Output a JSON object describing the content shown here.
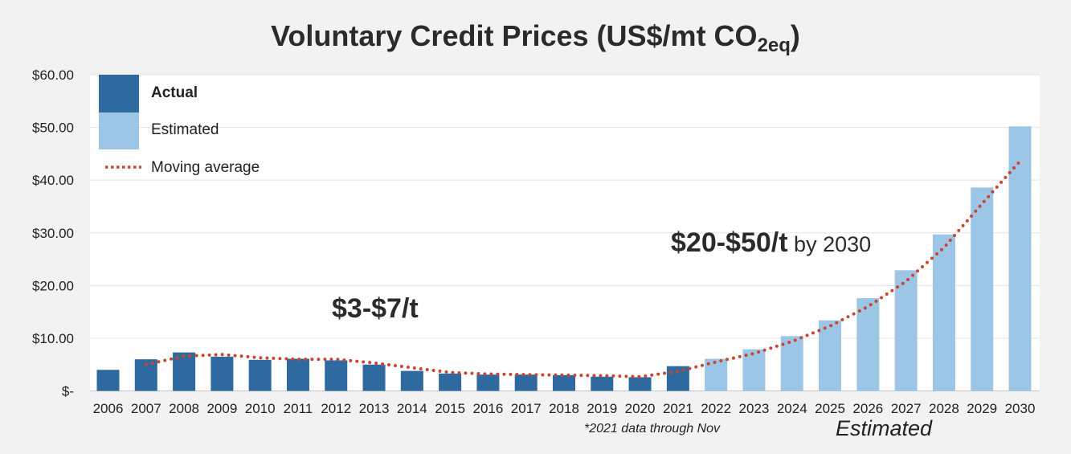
{
  "chart_data": {
    "type": "bar",
    "title_main": "Voluntary Credit Prices (US$/mt CO",
    "title_sub": "2eq",
    "title_end": ")",
    "categories": [
      "2006",
      "2007",
      "2008",
      "2009",
      "2010",
      "2011",
      "2012",
      "2013",
      "2014",
      "2015",
      "2016",
      "2017",
      "2018",
      "2019",
      "2020",
      "2021",
      "2022",
      "2023",
      "2024",
      "2025",
      "2026",
      "2027",
      "2028",
      "2029",
      "2030"
    ],
    "series": [
      {
        "name": "Actual",
        "color": "#2e6aa0",
        "values": [
          4.0,
          6.0,
          7.3,
          6.5,
          5.9,
          6.1,
          5.8,
          5.0,
          3.8,
          3.3,
          3.1,
          3.1,
          3.0,
          2.7,
          2.6,
          4.7,
          null,
          null,
          null,
          null,
          null,
          null,
          null,
          null,
          null
        ]
      },
      {
        "name": "Estimated",
        "color": "#9dc6e6",
        "values": [
          null,
          null,
          null,
          null,
          null,
          null,
          null,
          null,
          null,
          null,
          null,
          null,
          null,
          null,
          null,
          null,
          6.1,
          7.9,
          10.4,
          13.4,
          17.6,
          22.9,
          29.7,
          38.6,
          50.2
        ]
      }
    ],
    "moving_average": {
      "name": "Moving average",
      "color": "#c8452f",
      "x": [
        "2007",
        "2008",
        "2009",
        "2010",
        "2011",
        "2012",
        "2013",
        "2014",
        "2015",
        "2016",
        "2017",
        "2018",
        "2019",
        "2020",
        "2021",
        "2022",
        "2023",
        "2024",
        "2025",
        "2026",
        "2027",
        "2028",
        "2029",
        "2030"
      ],
      "values": [
        5.0,
        6.6,
        6.9,
        6.3,
        6.0,
        6.0,
        5.3,
        4.4,
        3.5,
        3.2,
        3.1,
        3.0,
        2.9,
        2.7,
        3.7,
        5.5,
        7.1,
        9.4,
        12.3,
        16.0,
        20.8,
        27.2,
        35.5,
        43.6
      ]
    },
    "yticks": [
      0,
      10,
      20,
      30,
      40,
      50,
      60
    ],
    "ytick_labels": [
      "$-",
      "$10.00",
      "$20.00",
      "$30.00",
      "$40.00",
      "$50.00",
      "$60.00"
    ],
    "ylim": [
      0,
      60
    ],
    "grid": true,
    "legend_position": "top-left",
    "annotations": {
      "actual_range": "$3-$7/t",
      "estimate_range": "$20-$50/t",
      "estimate_suffix": " by 2030",
      "footnote": "*2021 data through Nov",
      "estimated_label": "Estimated"
    }
  }
}
